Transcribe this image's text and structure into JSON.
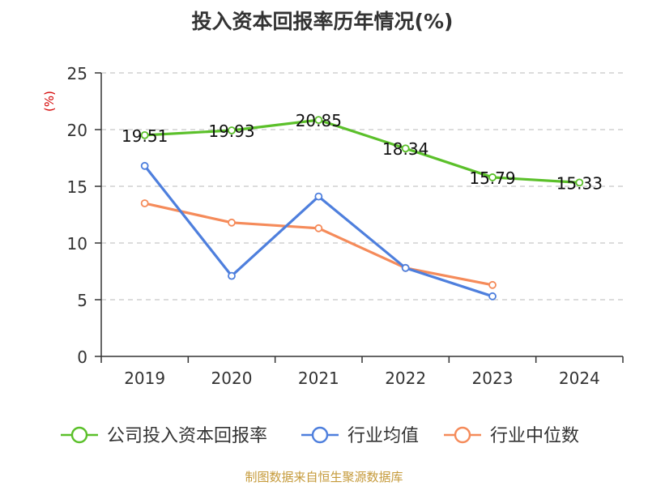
{
  "chart_data": {
    "type": "line",
    "title": "投入资本回报率历年情况(%)",
    "ylabel": "(%)",
    "xlabel": "",
    "categories": [
      "2019",
      "2020",
      "2021",
      "2022",
      "2023",
      "2024"
    ],
    "ylim": [
      0,
      25
    ],
    "yticks": [
      0,
      5,
      10,
      15,
      20,
      25
    ],
    "grid": true,
    "legend_position": "bottom",
    "series": [
      {
        "name": "公司投入资本回报率",
        "color": "#5bc02a",
        "values": [
          19.51,
          19.93,
          20.85,
          18.34,
          15.79,
          15.33
        ],
        "labels": [
          "19.51",
          "19.93",
          "20.85",
          "18.34",
          "15.79",
          "15.33"
        ]
      },
      {
        "name": "行业均值",
        "color": "#4e7fdd",
        "values": [
          16.8,
          7.1,
          14.1,
          7.8,
          5.3,
          null
        ]
      },
      {
        "name": "行业中位数",
        "color": "#f58b5a",
        "values": [
          13.5,
          11.8,
          11.3,
          7.8,
          6.3,
          null
        ]
      }
    ],
    "source": "制图数据来自恒生聚源数据库"
  }
}
